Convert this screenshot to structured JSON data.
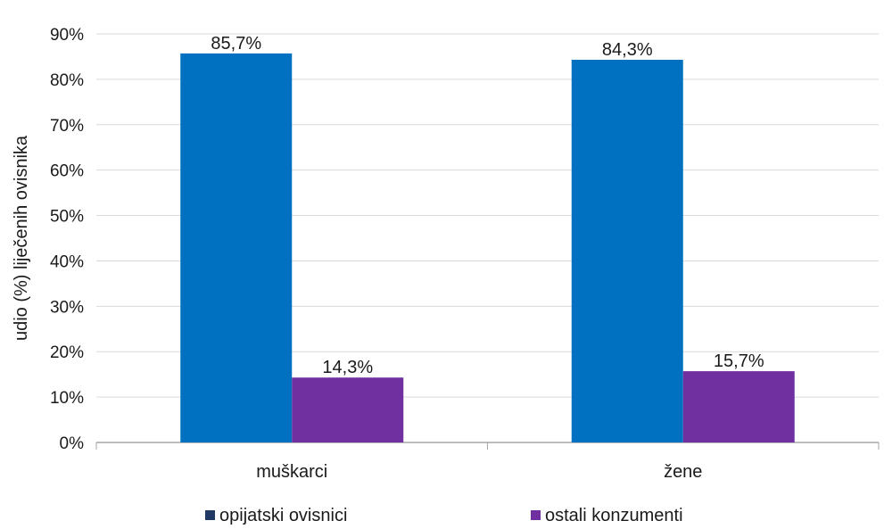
{
  "chart_data": {
    "type": "bar",
    "categories": [
      "muškarci",
      "žene"
    ],
    "series": [
      {
        "name": "opijatski ovisnici",
        "values": [
          85.7,
          84.3
        ],
        "labels": [
          "85,7%",
          "84,3%"
        ],
        "color": "#0070c0"
      },
      {
        "name": "ostali konzumenti",
        "values": [
          14.3,
          15.7
        ],
        "labels": [
          "14,3%",
          "15,7%"
        ],
        "color": "#7030a0"
      }
    ],
    "ylabel": "udio  (%) liječenih  ovisnika",
    "xlabel": "",
    "ylim": [
      0,
      90
    ],
    "yticks": [
      "0%",
      "10%",
      "20%",
      "30%",
      "40%",
      "50%",
      "60%",
      "70%",
      "80%",
      "90%"
    ],
    "grid": true,
    "legend_position": "bottom",
    "gridline_color": "#d9d9d9",
    "legend_marker_color_series0": "#1f3864"
  }
}
